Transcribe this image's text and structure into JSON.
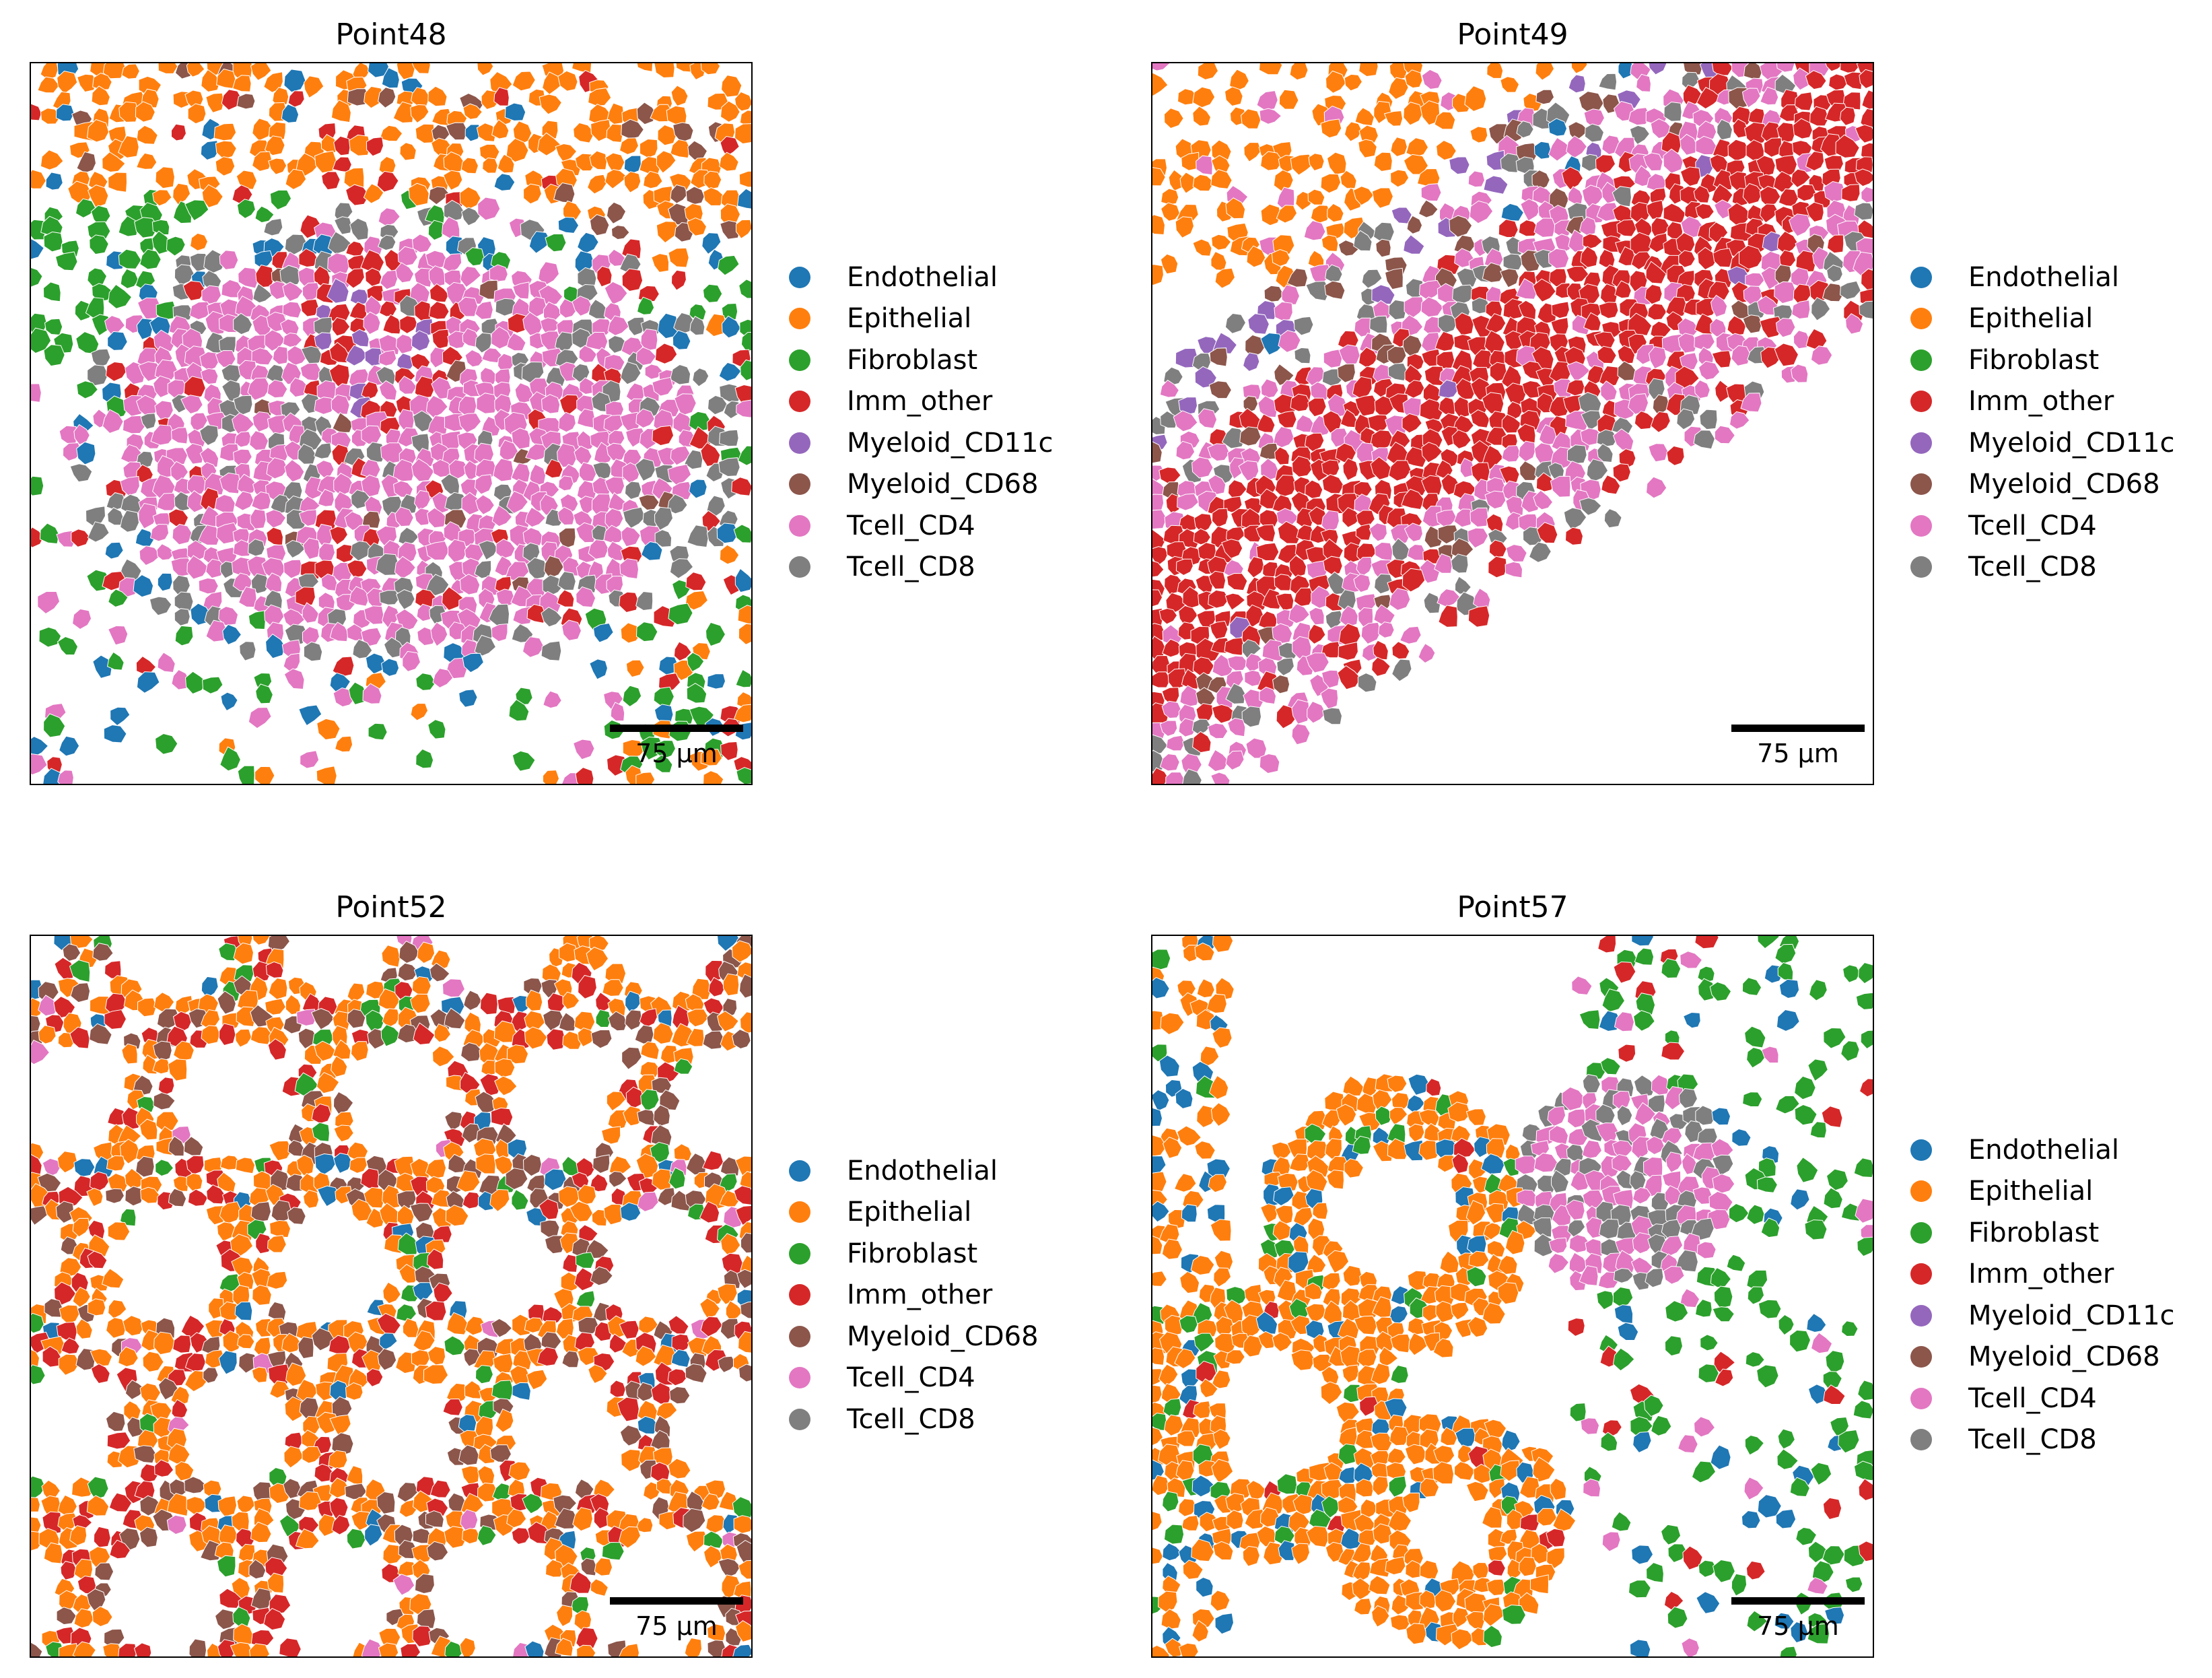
{
  "figure": {
    "panels": [
      {
        "title": "Point48",
        "scalebar_label": "75 µm",
        "legend": [
          "Endothelial",
          "Epithelial",
          "Fibroblast",
          "Imm_other",
          "Myeloid_CD11c",
          "Myeloid_CD68",
          "Tcell_CD4",
          "Tcell_CD8"
        ]
      },
      {
        "title": "Point49",
        "scalebar_label": "75 µm",
        "legend": [
          "Endothelial",
          "Epithelial",
          "Fibroblast",
          "Imm_other",
          "Myeloid_CD11c",
          "Myeloid_CD68",
          "Tcell_CD4",
          "Tcell_CD8"
        ]
      },
      {
        "title": "Point52",
        "scalebar_label": "75 µm",
        "legend": [
          "Endothelial",
          "Epithelial",
          "Fibroblast",
          "Imm_other",
          "Myeloid_CD68",
          "Tcell_CD4",
          "Tcell_CD8"
        ]
      },
      {
        "title": "Point57",
        "scalebar_label": "75 µm",
        "legend": [
          "Endothelial",
          "Epithelial",
          "Fibroblast",
          "Imm_other",
          "Myeloid_CD11c",
          "Myeloid_CD68",
          "Tcell_CD4",
          "Tcell_CD8"
        ]
      }
    ]
  },
  "colors": {
    "Endothelial": "#1f77b4",
    "Epithelial": "#ff7f0e",
    "Fibroblast": "#2ca02c",
    "Imm_other": "#d62728",
    "Myeloid_CD11c": "#9467bd",
    "Myeloid_CD68": "#8c564b",
    "Tcell_CD4": "#e377c2",
    "Tcell_CD8": "#7f7f7f"
  },
  "chart_data": [
    {
      "type": "scatter",
      "title": "Point48",
      "categories": [
        "Endothelial",
        "Epithelial",
        "Fibroblast",
        "Imm_other",
        "Myeloid_CD11c",
        "Myeloid_CD68",
        "Tcell_CD4",
        "Tcell_CD8"
      ],
      "scalebar": "75 µm",
      "legend_position": "right",
      "axes": "off"
    },
    {
      "type": "scatter",
      "title": "Point49",
      "categories": [
        "Endothelial",
        "Epithelial",
        "Fibroblast",
        "Imm_other",
        "Myeloid_CD11c",
        "Myeloid_CD68",
        "Tcell_CD4",
        "Tcell_CD8"
      ],
      "scalebar": "75 µm",
      "legend_position": "right",
      "axes": "off"
    },
    {
      "type": "scatter",
      "title": "Point52",
      "categories": [
        "Endothelial",
        "Epithelial",
        "Fibroblast",
        "Imm_other",
        "Myeloid_CD68",
        "Tcell_CD4",
        "Tcell_CD8"
      ],
      "scalebar": "75 µm",
      "legend_position": "right",
      "axes": "off"
    },
    {
      "type": "scatter",
      "title": "Point57",
      "categories": [
        "Endothelial",
        "Epithelial",
        "Fibroblast",
        "Imm_other",
        "Myeloid_CD11c",
        "Myeloid_CD68",
        "Tcell_CD4",
        "Tcell_CD8"
      ],
      "scalebar": "75 µm",
      "legend_position": "right",
      "axes": "off"
    }
  ]
}
